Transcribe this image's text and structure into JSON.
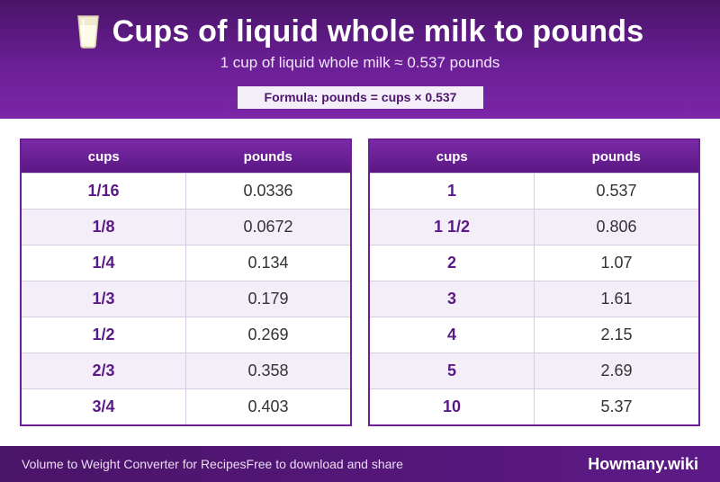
{
  "header": {
    "title": "Cups of liquid whole milk to pounds",
    "icon": "milk-glass-icon",
    "subtitle": "1 cup of liquid whole milk ≈ 0.537 pounds",
    "formula": "Formula: pounds = cups × 0.537"
  },
  "tables": {
    "left": {
      "col_cups": "cups",
      "col_pounds": "pounds",
      "rows": [
        {
          "cups": "1/16",
          "pounds": "0.0336"
        },
        {
          "cups": "1/8",
          "pounds": "0.0672"
        },
        {
          "cups": "1/4",
          "pounds": "0.134"
        },
        {
          "cups": "1/3",
          "pounds": "0.179"
        },
        {
          "cups": "1/2",
          "pounds": "0.269"
        },
        {
          "cups": "2/3",
          "pounds": "0.358"
        },
        {
          "cups": "3/4",
          "pounds": "0.403"
        }
      ]
    },
    "right": {
      "col_cups": "cups",
      "col_pounds": "pounds",
      "rows": [
        {
          "cups": "1",
          "pounds": "0.537"
        },
        {
          "cups": "1 1/2",
          "pounds": "0.806"
        },
        {
          "cups": "2",
          "pounds": "1.07"
        },
        {
          "cups": "3",
          "pounds": "1.61"
        },
        {
          "cups": "4",
          "pounds": "2.15"
        },
        {
          "cups": "5",
          "pounds": "2.69"
        },
        {
          "cups": "10",
          "pounds": "5.37"
        }
      ]
    }
  },
  "footer": {
    "left_text": "Volume to Weight Converter for Recipes",
    "middle_text": "Free to download and share",
    "brand": "Howmany.wiki"
  },
  "colors": {
    "header_purple": "#5e1a88",
    "accent_purple": "#6a1f93",
    "alt_row": "#f3eef8"
  }
}
